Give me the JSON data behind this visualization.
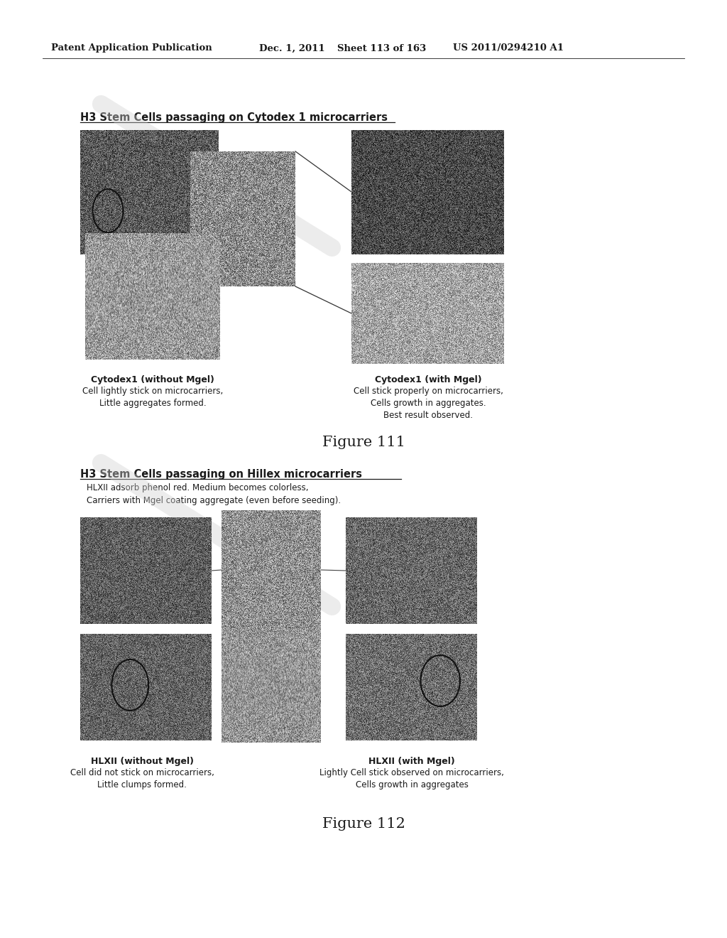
{
  "background_color": "#ffffff",
  "header_text": "Patent Application Publication",
  "header_date": "Dec. 1, 2011",
  "header_sheet": "Sheet 113 of 163",
  "header_patent": "US 2011/0294210 A1",
  "fig1_title": "H3 Stem Cells passaging on Cytodex 1 microcarriers",
  "fig1_caption_left_bold": "Cytodex1 (without Mgel)",
  "fig1_caption_left": "Cell lightly stick on microcarriers,\nLittle aggregates formed.",
  "fig1_caption_right_bold": "Cytodex1 (with Mgel)",
  "fig1_caption_right": "Cell stick properly on microcarriers,\nCells growth in aggregates.\nBest result observed.",
  "fig1_label": "Figure 111",
  "fig2_title": "H3 Stem Cells passaging on Hillex microcarriers",
  "fig2_subtitle": "HLXII adsorb phenol red. Medium becomes colorless,\nCarriers with Mgel coating aggregate (even before seeding).",
  "fig2_caption_left_bold": "HLXII (without Mgel)",
  "fig2_caption_left": "Cell did not stick on microcarriers,\nLittle clumps formed.",
  "fig2_caption_right_bold": "HLXII (with Mgel)",
  "fig2_caption_right": "Lightly Cell stick observed on microcarriers,\nCells growth in aggregates",
  "fig2_label": "Figure 112",
  "text_color": "#1a1a1a"
}
